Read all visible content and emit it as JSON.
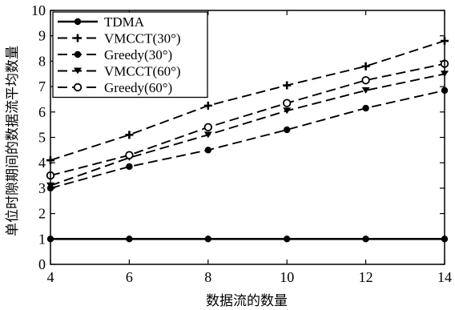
{
  "chart_data": {
    "type": "line",
    "xlabel": "数据流的数量",
    "ylabel": "单位时隙期间的数据流平均数量",
    "xlim": [
      4,
      14
    ],
    "ylim": [
      0,
      10
    ],
    "x_ticks": [
      "4",
      "6",
      "8",
      "10",
      "12",
      "14"
    ],
    "y_ticks": [
      "0",
      "1",
      "2",
      "3",
      "4",
      "5",
      "6",
      "7",
      "8",
      "9",
      "10"
    ],
    "grid": false,
    "legend_position": "top-left",
    "series": [
      {
        "name": "TDMA",
        "marker": "dot",
        "dash": "solid",
        "x": [
          4,
          6,
          8,
          10,
          12,
          14
        ],
        "y": [
          1.0,
          1.0,
          1.0,
          1.0,
          1.0,
          1.0
        ]
      },
      {
        "name": "VMCCT(30°)",
        "marker": "plus",
        "dash": "dashed",
        "x": [
          4,
          6,
          8,
          10,
          12,
          14
        ],
        "y": [
          4.1,
          5.1,
          6.25,
          7.05,
          7.8,
          8.8
        ]
      },
      {
        "name": "Greedy(30°)",
        "marker": "dot",
        "dash": "dashed",
        "x": [
          4,
          6,
          8,
          10,
          12,
          14
        ],
        "y": [
          3.0,
          3.85,
          4.5,
          5.3,
          6.15,
          6.85
        ]
      },
      {
        "name": "VMCCT(60°)",
        "marker": "tri",
        "dash": "dashed",
        "x": [
          4,
          6,
          8,
          10,
          12,
          14
        ],
        "y": [
          3.1,
          4.2,
          5.1,
          6.05,
          6.85,
          7.5
        ]
      },
      {
        "name": "Greedy(60°)",
        "marker": "circle",
        "dash": "dashed",
        "x": [
          4,
          6,
          8,
          10,
          12,
          14
        ],
        "y": [
          3.5,
          4.3,
          5.4,
          6.35,
          7.25,
          7.9
        ]
      }
    ]
  }
}
